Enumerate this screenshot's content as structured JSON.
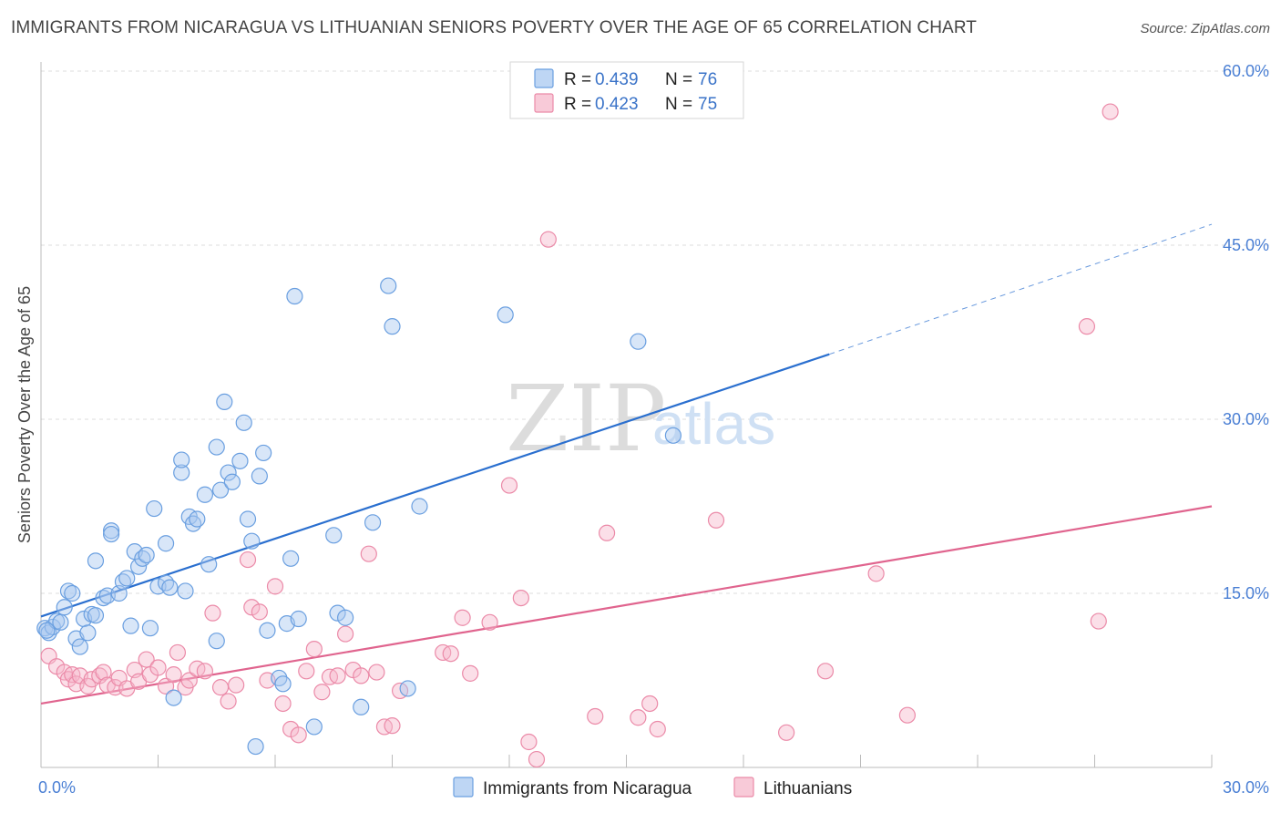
{
  "title": "IMMIGRANTS FROM NICARAGUA VS LITHUANIAN SENIORS POVERTY OVER THE AGE OF 65 CORRELATION CHART",
  "source": "Source: ZipAtlas.com",
  "watermark": {
    "part1": "ZIP",
    "part2": "atlas"
  },
  "legend_top": [
    {
      "r_label": "R =",
      "r_value": "0.439",
      "n_label": "N =",
      "n_value": "76"
    },
    {
      "r_label": "R =",
      "r_value": "0.423",
      "n_label": "N =",
      "n_value": "75"
    }
  ],
  "legend_bottom": [
    "Immigrants from Nicaragua",
    "Lithuanians"
  ],
  "colors": {
    "blue_fill": "#a8c8f0",
    "blue_stroke": "#6a9fe0",
    "blue_line": "#2a6fcf",
    "pink_fill": "#f6b8cb",
    "pink_stroke": "#eb8aa8",
    "pink_line": "#e0648e",
    "tick_text": "#4a7fd4",
    "grid": "#dcdcdc"
  },
  "chart_data": {
    "type": "scatter",
    "title": "IMMIGRANTS FROM NICARAGUA VS LITHUANIAN SENIORS POVERTY OVER THE AGE OF 65 CORRELATION CHART",
    "xlabel": "",
    "ylabel": "Seniors Poverty Over the Age of 65",
    "xlim": [
      0,
      30
    ],
    "ylim": [
      0,
      60
    ],
    "x_tick_labels": [
      {
        "value": 0,
        "label": "0.0%"
      },
      {
        "value": 30,
        "label": "30.0%"
      }
    ],
    "y_tick_labels": [
      {
        "value": 15,
        "label": "15.0%"
      },
      {
        "value": 30,
        "label": "30.0%"
      },
      {
        "value": 45,
        "label": "45.0%"
      },
      {
        "value": 60,
        "label": "60.0%"
      }
    ],
    "grid": true,
    "legend_position": "top-center",
    "series": [
      {
        "name": "Immigrants from Nicaragua",
        "color": "#a8c8f0",
        "points": [
          [
            0.1,
            12.0
          ],
          [
            0.2,
            11.6
          ],
          [
            0.3,
            12.1
          ],
          [
            0.4,
            12.6
          ],
          [
            0.5,
            12.5
          ],
          [
            0.6,
            13.8
          ],
          [
            0.7,
            15.2
          ],
          [
            0.8,
            15.0
          ],
          [
            0.9,
            11.1
          ],
          [
            1.0,
            10.4
          ],
          [
            1.1,
            12.8
          ],
          [
            1.2,
            11.6
          ],
          [
            1.3,
            13.2
          ],
          [
            1.4,
            13.1
          ],
          [
            1.4,
            17.8
          ],
          [
            1.6,
            14.6
          ],
          [
            1.7,
            14.8
          ],
          [
            1.8,
            20.4
          ],
          [
            1.8,
            20.1
          ],
          [
            2.0,
            15.0
          ],
          [
            2.1,
            16.0
          ],
          [
            2.2,
            16.3
          ],
          [
            2.3,
            12.2
          ],
          [
            2.4,
            18.6
          ],
          [
            2.5,
            17.3
          ],
          [
            2.6,
            18.0
          ],
          [
            2.7,
            18.3
          ],
          [
            2.8,
            12.0
          ],
          [
            2.9,
            22.3
          ],
          [
            3.0,
            15.6
          ],
          [
            3.2,
            15.9
          ],
          [
            3.2,
            19.3
          ],
          [
            3.3,
            15.5
          ],
          [
            3.4,
            6.0
          ],
          [
            3.6,
            25.4
          ],
          [
            3.6,
            26.5
          ],
          [
            3.7,
            15.2
          ],
          [
            3.8,
            21.6
          ],
          [
            3.9,
            21.0
          ],
          [
            4.0,
            21.4
          ],
          [
            4.2,
            23.5
          ],
          [
            4.3,
            17.5
          ],
          [
            4.5,
            27.6
          ],
          [
            4.5,
            10.9
          ],
          [
            4.6,
            23.9
          ],
          [
            4.7,
            31.5
          ],
          [
            4.8,
            25.4
          ],
          [
            4.9,
            24.6
          ],
          [
            5.1,
            26.4
          ],
          [
            5.2,
            29.7
          ],
          [
            5.3,
            21.4
          ],
          [
            5.4,
            19.5
          ],
          [
            5.5,
            1.8
          ],
          [
            5.6,
            25.1
          ],
          [
            5.7,
            27.1
          ],
          [
            5.8,
            11.8
          ],
          [
            6.1,
            7.7
          ],
          [
            6.2,
            7.2
          ],
          [
            6.3,
            12.4
          ],
          [
            6.4,
            18.0
          ],
          [
            6.5,
            40.6
          ],
          [
            6.6,
            12.8
          ],
          [
            7.0,
            3.5
          ],
          [
            7.5,
            20.0
          ],
          [
            7.6,
            13.3
          ],
          [
            7.8,
            12.9
          ],
          [
            8.2,
            5.2
          ],
          [
            8.5,
            21.1
          ],
          [
            8.9,
            41.5
          ],
          [
            9.0,
            38.0
          ],
          [
            9.4,
            6.8
          ],
          [
            9.7,
            22.5
          ],
          [
            11.9,
            39.0
          ],
          [
            15.3,
            36.7
          ],
          [
            16.2,
            28.6
          ],
          [
            0.15,
            11.8
          ]
        ]
      },
      {
        "name": "Lithuanians",
        "color": "#f6b8cb",
        "points": [
          [
            0.2,
            9.6
          ],
          [
            0.4,
            8.7
          ],
          [
            0.6,
            8.2
          ],
          [
            0.7,
            7.6
          ],
          [
            0.8,
            8.0
          ],
          [
            0.9,
            7.2
          ],
          [
            1.0,
            7.9
          ],
          [
            1.2,
            7.0
          ],
          [
            1.3,
            7.6
          ],
          [
            1.5,
            7.9
          ],
          [
            1.6,
            8.2
          ],
          [
            1.7,
            7.1
          ],
          [
            1.9,
            6.9
          ],
          [
            2.0,
            7.7
          ],
          [
            2.2,
            6.8
          ],
          [
            2.4,
            8.4
          ],
          [
            2.5,
            7.4
          ],
          [
            2.7,
            9.3
          ],
          [
            2.8,
            8.0
          ],
          [
            3.0,
            8.6
          ],
          [
            3.2,
            7.0
          ],
          [
            3.4,
            8.0
          ],
          [
            3.5,
            9.9
          ],
          [
            3.7,
            6.9
          ],
          [
            3.8,
            7.5
          ],
          [
            4.0,
            8.5
          ],
          [
            4.2,
            8.3
          ],
          [
            4.4,
            13.3
          ],
          [
            4.6,
            6.9
          ],
          [
            4.8,
            5.7
          ],
          [
            5.0,
            7.1
          ],
          [
            5.3,
            17.9
          ],
          [
            5.4,
            13.8
          ],
          [
            5.6,
            13.4
          ],
          [
            5.8,
            7.5
          ],
          [
            6.0,
            15.6
          ],
          [
            6.2,
            5.5
          ],
          [
            6.4,
            3.3
          ],
          [
            6.6,
            2.8
          ],
          [
            6.8,
            8.3
          ],
          [
            7.0,
            10.2
          ],
          [
            7.2,
            6.5
          ],
          [
            7.4,
            7.8
          ],
          [
            7.6,
            7.9
          ],
          [
            7.8,
            11.5
          ],
          [
            8.0,
            8.4
          ],
          [
            8.2,
            7.9
          ],
          [
            8.4,
            18.4
          ],
          [
            8.6,
            8.2
          ],
          [
            8.8,
            3.5
          ],
          [
            9.0,
            3.6
          ],
          [
            9.2,
            6.6
          ],
          [
            10.3,
            9.9
          ],
          [
            10.5,
            9.8
          ],
          [
            10.8,
            12.9
          ],
          [
            11.0,
            8.1
          ],
          [
            11.5,
            12.5
          ],
          [
            12.0,
            24.3
          ],
          [
            12.3,
            14.6
          ],
          [
            12.5,
            2.2
          ],
          [
            12.7,
            0.7
          ],
          [
            13.0,
            45.5
          ],
          [
            14.2,
            4.4
          ],
          [
            14.5,
            20.2
          ],
          [
            15.3,
            4.3
          ],
          [
            15.6,
            5.5
          ],
          [
            15.8,
            3.3
          ],
          [
            17.3,
            21.3
          ],
          [
            19.1,
            3.0
          ],
          [
            20.1,
            8.3
          ],
          [
            21.4,
            16.7
          ],
          [
            22.2,
            4.5
          ],
          [
            26.8,
            38.0
          ],
          [
            27.1,
            12.6
          ],
          [
            27.4,
            56.5
          ]
        ]
      }
    ],
    "trendlines": [
      {
        "series": "Immigrants from Nicaragua",
        "x0": 0,
        "y0": 13.0,
        "x1": 20.2,
        "y1": 35.6,
        "dashed_to_x": 30,
        "dashed_to_y": 46.8
      },
      {
        "series": "Lithuanians",
        "x0": 0,
        "y0": 5.5,
        "x1": 30,
        "y1": 22.5
      }
    ]
  }
}
